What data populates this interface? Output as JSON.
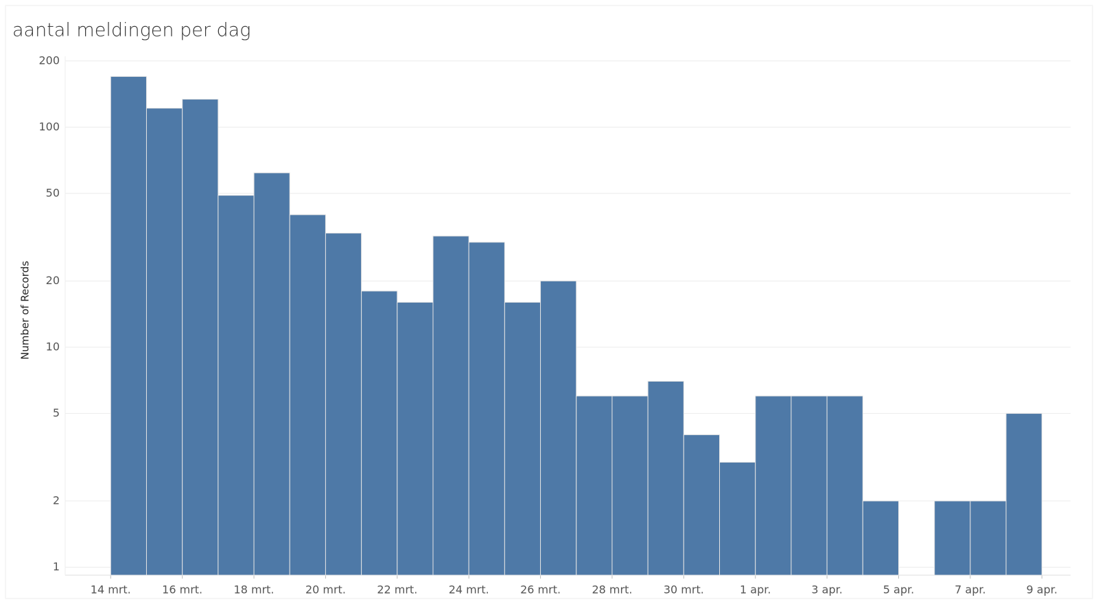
{
  "chart_data": {
    "type": "histogram",
    "title": "aantal meldingen per dag",
    "y_label": "Number of Records",
    "bins": [
      0,
      1,
      2,
      3,
      4,
      5,
      6,
      7,
      8,
      9,
      10,
      11,
      12,
      13,
      14,
      15,
      16,
      17,
      18,
      19,
      20,
      21,
      22,
      23,
      24,
      25,
      26
    ],
    "values": [
      170,
      122,
      134,
      49,
      62,
      40,
      33,
      18,
      16,
      32,
      30,
      16,
      20,
      6,
      6,
      7,
      4,
      3,
      6,
      6,
      6,
      2,
      null,
      2,
      2,
      5
    ],
    "color": "#4e79a7",
    "xlim": [
      -1.27,
      26.8
    ],
    "xticks": [
      {
        "value": 0,
        "label": "14 mrt."
      },
      {
        "value": 2,
        "label": "16 mrt."
      },
      {
        "value": 4,
        "label": "18 mrt."
      },
      {
        "value": 6,
        "label": "20 mrt."
      },
      {
        "value": 8,
        "label": "22 mrt."
      },
      {
        "value": 10,
        "label": "24 mrt."
      },
      {
        "value": 12,
        "label": "26 mrt."
      },
      {
        "value": 14,
        "label": "28 mrt."
      },
      {
        "value": 16,
        "label": "30 mrt."
      },
      {
        "value": 18,
        "label": "1 apr."
      },
      {
        "value": 20,
        "label": "3 apr."
      },
      {
        "value": 22,
        "label": "5 apr."
      },
      {
        "value": 24,
        "label": "7 apr."
      },
      {
        "value": 26,
        "label": "9 apr."
      }
    ],
    "ylim": [
      0.92,
      210
    ],
    "yticks": [
      1,
      2,
      5,
      10,
      20,
      50,
      100,
      200
    ],
    "log_y": true,
    "grid": true
  }
}
